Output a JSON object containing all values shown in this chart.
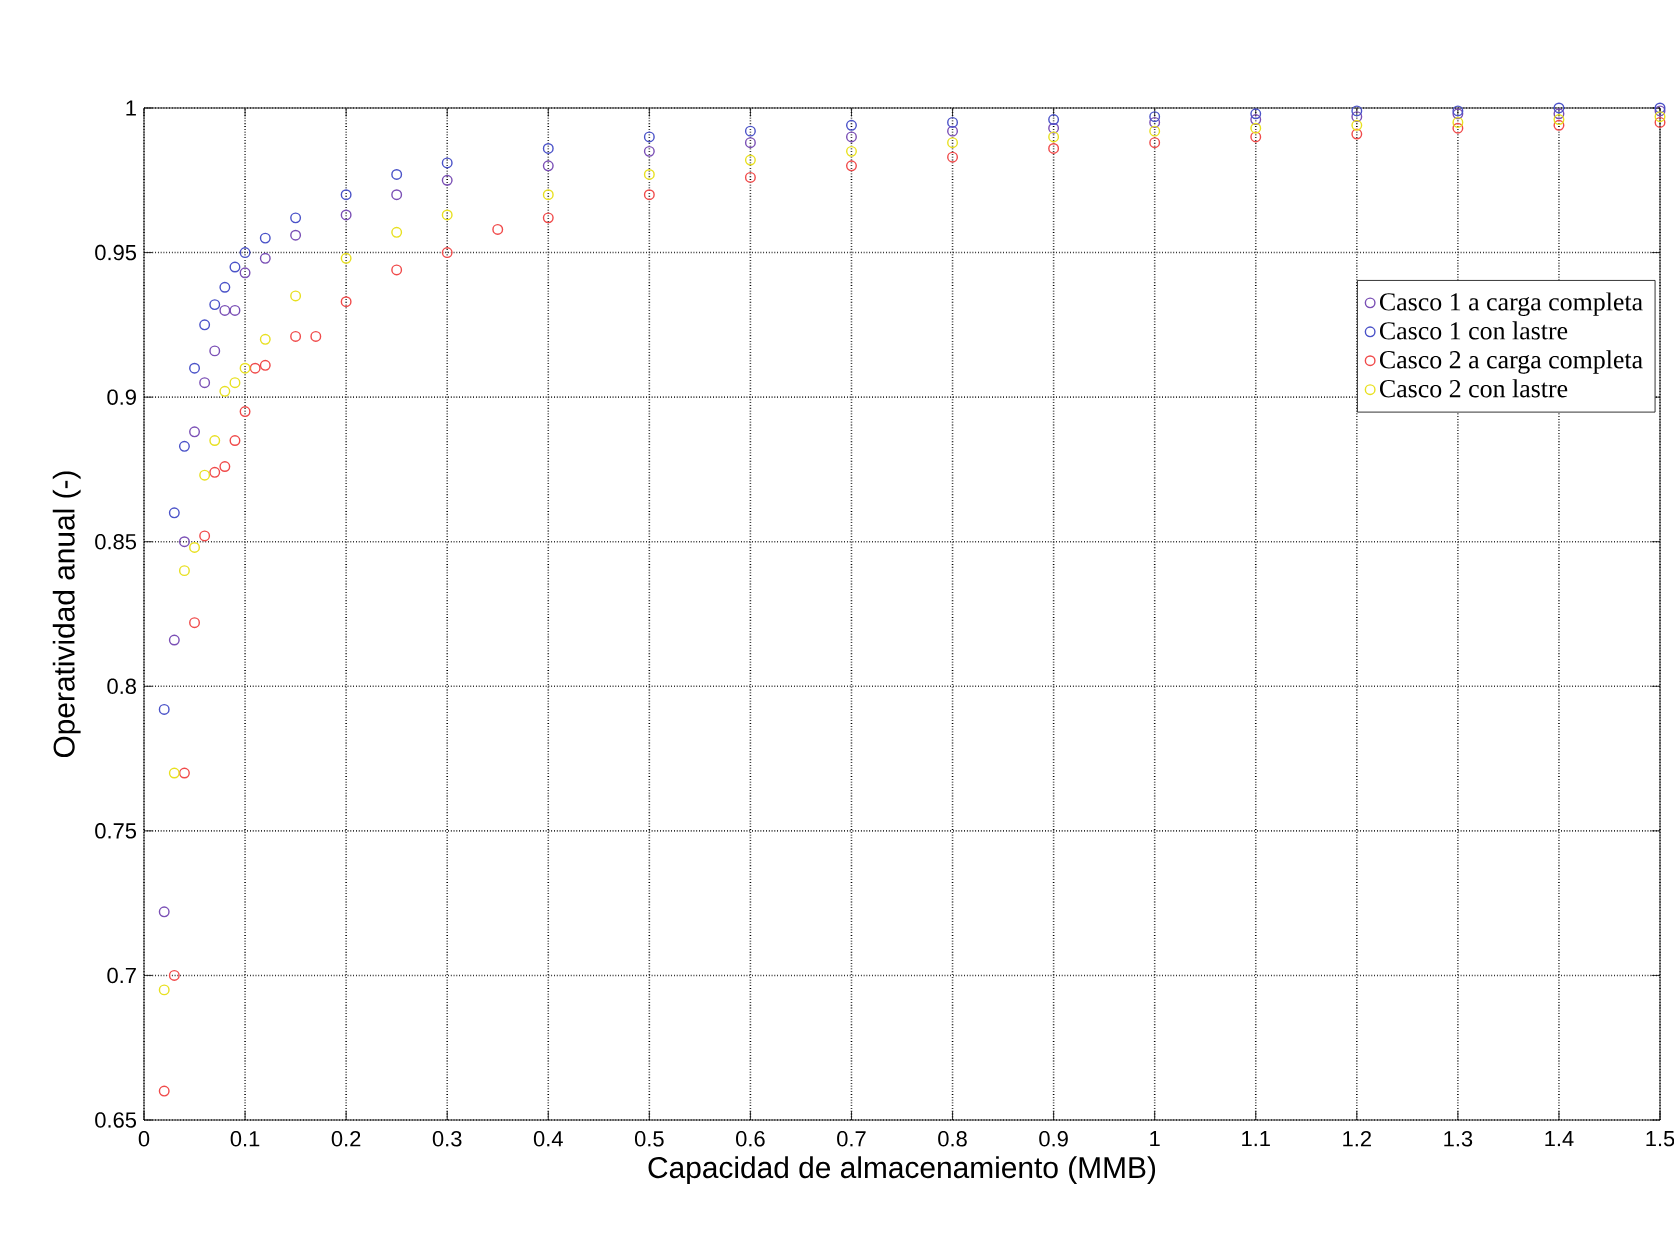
{
  "chart_data": {
    "type": "scatter",
    "xlabel": "Capacidad de almacenamiento (MMB)",
    "ylabel": "Operatividad anual (-)",
    "xlim": [
      0,
      1.5
    ],
    "ylim": [
      0.65,
      1
    ],
    "xticks": [
      0,
      0.1,
      0.2,
      0.3,
      0.4,
      0.5,
      0.6,
      0.7,
      0.8,
      0.9,
      1,
      1.1,
      1.2,
      1.3,
      1.4,
      1.5
    ],
    "yticks": [
      0.65,
      0.7,
      0.75,
      0.8,
      0.85,
      0.9,
      0.95,
      1
    ],
    "grid": true,
    "legend": "top right",
    "marker": "circle",
    "series": [
      {
        "name": "Casco 1 a carga completa",
        "color": "#7a4fb5",
        "x": [
          0.02,
          0.03,
          0.04,
          0.05,
          0.06,
          0.07,
          0.08,
          0.09,
          0.1,
          0.12,
          0.15,
          0.2,
          0.25,
          0.3,
          0.4,
          0.5,
          0.6,
          0.7,
          0.8,
          0.9,
          1.0,
          1.1,
          1.2,
          1.3,
          1.4,
          1.5
        ],
        "values": [
          0.722,
          0.816,
          0.85,
          0.888,
          0.905,
          0.916,
          0.93,
          0.93,
          0.943,
          0.948,
          0.956,
          0.963,
          0.97,
          0.975,
          0.98,
          0.985,
          0.988,
          0.99,
          0.992,
          0.993,
          0.995,
          0.996,
          0.997,
          0.998,
          0.998,
          0.999
        ]
      },
      {
        "name": "Casco 1 con lastre",
        "color": "#4a52c8",
        "x": [
          0.02,
          0.03,
          0.04,
          0.05,
          0.06,
          0.07,
          0.08,
          0.09,
          0.1,
          0.12,
          0.15,
          0.2,
          0.25,
          0.3,
          0.4,
          0.5,
          0.6,
          0.7,
          0.8,
          0.9,
          1.0,
          1.1,
          1.2,
          1.3,
          1.4,
          1.5
        ],
        "values": [
          0.792,
          0.86,
          0.883,
          0.91,
          0.925,
          0.932,
          0.938,
          0.945,
          0.95,
          0.955,
          0.962,
          0.97,
          0.977,
          0.981,
          0.986,
          0.99,
          0.992,
          0.994,
          0.995,
          0.996,
          0.997,
          0.998,
          0.999,
          0.999,
          1.0,
          1.0
        ]
      },
      {
        "name": "Casco 2 a carga completa",
        "color": "#f04a4a",
        "x": [
          0.02,
          0.03,
          0.04,
          0.05,
          0.06,
          0.07,
          0.08,
          0.09,
          0.1,
          0.11,
          0.12,
          0.15,
          0.17,
          0.2,
          0.25,
          0.3,
          0.35,
          0.4,
          0.5,
          0.6,
          0.7,
          0.8,
          0.9,
          1.0,
          1.1,
          1.2,
          1.3,
          1.4,
          1.5
        ],
        "values": [
          0.66,
          0.7,
          0.77,
          0.822,
          0.852,
          0.874,
          0.876,
          0.885,
          0.895,
          0.91,
          0.911,
          0.921,
          0.921,
          0.933,
          0.944,
          0.95,
          0.958,
          0.962,
          0.97,
          0.976,
          0.98,
          0.983,
          0.986,
          0.988,
          0.99,
          0.991,
          0.993,
          0.994,
          0.995
        ]
      },
      {
        "name": "Casco 2 con lastre",
        "color": "#e8e020",
        "x": [
          0.02,
          0.03,
          0.04,
          0.05,
          0.06,
          0.07,
          0.08,
          0.09,
          0.1,
          0.12,
          0.15,
          0.2,
          0.25,
          0.3,
          0.4,
          0.5,
          0.6,
          0.7,
          0.8,
          0.9,
          1.0,
          1.1,
          1.2,
          1.3,
          1.4,
          1.5
        ],
        "values": [
          0.695,
          0.77,
          0.84,
          0.848,
          0.873,
          0.885,
          0.902,
          0.905,
          0.91,
          0.92,
          0.935,
          0.948,
          0.957,
          0.963,
          0.97,
          0.977,
          0.982,
          0.985,
          0.988,
          0.99,
          0.992,
          0.993,
          0.994,
          0.995,
          0.996,
          0.997
        ]
      }
    ]
  }
}
